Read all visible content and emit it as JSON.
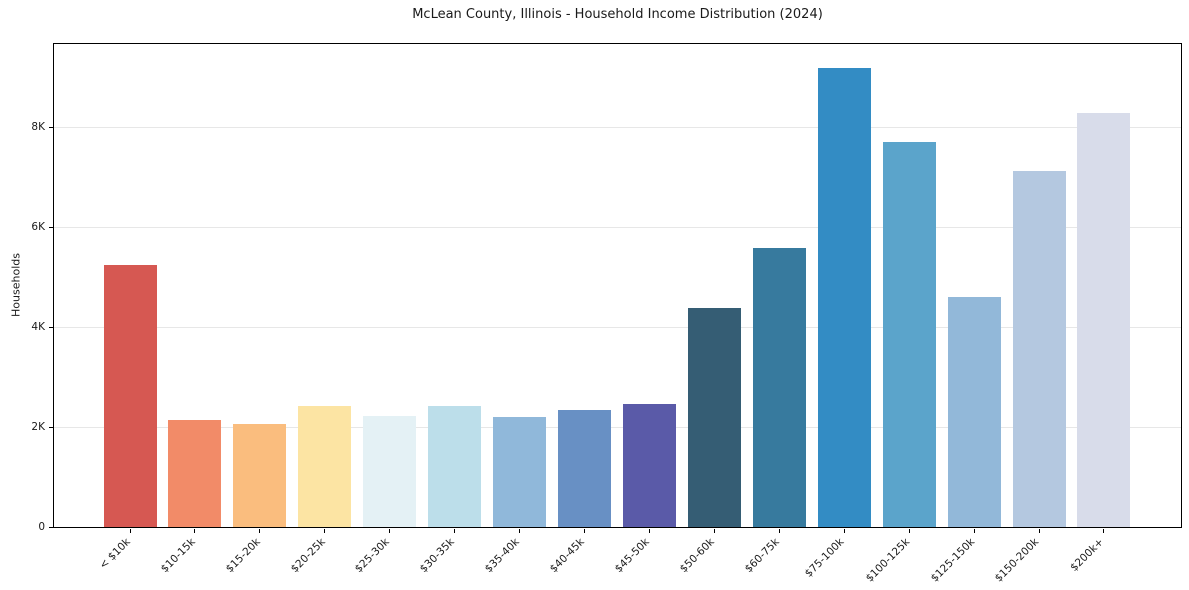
{
  "chart_data": {
    "type": "bar",
    "title": "McLean County, Illinois - Household Income Distribution (2024)",
    "xlabel": "",
    "ylabel": "Households",
    "categories": [
      "< $10k",
      "$10-15k",
      "$15-20k",
      "$20-25k",
      "$25-30k",
      "$30-35k",
      "$35-40k",
      "$40-45k",
      "$45-50k",
      "$50-60k",
      "$60-75k",
      "$75-100k",
      "$100-125k",
      "$125-150k",
      "$150-200k",
      "$200k+"
    ],
    "values": [
      5250,
      2140,
      2060,
      2420,
      2220,
      2420,
      2200,
      2340,
      2460,
      4380,
      5580,
      9180,
      7700,
      4600,
      7120,
      8280
    ],
    "bar_colors": [
      "#d65852",
      "#f28b68",
      "#fabd7e",
      "#fce4a3",
      "#e4f1f5",
      "#bcdeea",
      "#90b8da",
      "#6890c4",
      "#5a5aa8",
      "#355d74",
      "#377a9e",
      "#338cc4",
      "#5ba4cb",
      "#92b8d9",
      "#b4c8e0",
      "#d8dcea"
    ],
    "ylim": [
      0,
      9660
    ],
    "yticks": [
      {
        "value": 0,
        "label": "0"
      },
      {
        "value": 2000,
        "label": "2K"
      },
      {
        "value": 4000,
        "label": "4K"
      },
      {
        "value": 6000,
        "label": "6K"
      },
      {
        "value": 8000,
        "label": "8K"
      }
    ],
    "grid": "horizontal",
    "grid_color": "#e7e7e7",
    "legend": "none"
  }
}
